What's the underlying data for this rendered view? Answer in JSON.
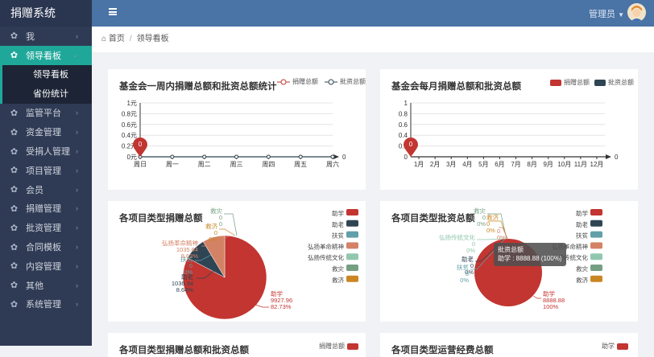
{
  "app": {
    "title": "捐赠系统",
    "user": "管理员"
  },
  "menu": [
    {
      "label": "我",
      "icon": "gear-icon"
    },
    {
      "label": "领导看板",
      "icon": "gear-icon",
      "active": true
    },
    {
      "label": "监管平台",
      "icon": "gear-icon"
    },
    {
      "label": "资金管理",
      "icon": "gear-icon"
    },
    {
      "label": "受捐人管理",
      "icon": "gear-icon"
    },
    {
      "label": "项目管理",
      "icon": "gear-icon"
    },
    {
      "label": "会员",
      "icon": "gear-icon"
    },
    {
      "label": "捐赠管理",
      "icon": "gear-icon"
    },
    {
      "label": "批资管理",
      "icon": "gear-icon"
    },
    {
      "label": "合同模板",
      "icon": "gear-icon"
    },
    {
      "label": "内容管理",
      "icon": "gear-icon"
    },
    {
      "label": "其他",
      "icon": "gear-icon"
    },
    {
      "label": "系统管理",
      "icon": "gear-icon"
    }
  ],
  "submenu": [
    {
      "label": "领导看板"
    },
    {
      "label": "省份统计"
    }
  ],
  "breadcrumb": {
    "home": "首页",
    "current": "领导看板"
  },
  "colors": {
    "donation": "#c23531",
    "approval": "#2f4554",
    "topbar": "#4a73a6",
    "sidebar": "#2f3b55",
    "accent": "#1fa89a"
  },
  "chart_data": [
    {
      "type": "line",
      "title": "基金会一周内捐赠总额和批资总额统计",
      "categories": [
        "周日",
        "周一",
        "周二",
        "周三",
        "周四",
        "周五",
        "周六"
      ],
      "series": [
        {
          "name": "捐赠总额",
          "values": [
            0,
            0,
            0,
            0,
            0,
            0,
            0
          ]
        },
        {
          "name": "批资总额",
          "values": [
            0,
            0,
            0,
            0,
            0,
            0,
            0
          ]
        }
      ],
      "yticks": [
        "0元",
        "0.2元",
        "0.4元",
        "0.6元",
        "0.8元",
        "1元"
      ],
      "ylim": [
        0,
        1
      ],
      "end_label": "0",
      "marker_label": "0"
    },
    {
      "type": "bar",
      "title": "基金会每月捐赠总额和批资总额",
      "categories": [
        "1月",
        "2月",
        "3月",
        "4月",
        "5月",
        "6月",
        "7月",
        "8月",
        "9月",
        "10月",
        "11月",
        "12月"
      ],
      "series": [
        {
          "name": "捐赠总额",
          "values": [
            0,
            0,
            0,
            0,
            0,
            0,
            0,
            0,
            0,
            0,
            0,
            0
          ]
        },
        {
          "name": "批资总额",
          "values": [
            0,
            0,
            0,
            0,
            0,
            0,
            0,
            0,
            0,
            0,
            0,
            0
          ]
        }
      ],
      "yticks": [
        "0",
        "0.2",
        "0.4",
        "0.6",
        "0.8",
        "1"
      ],
      "ylim": [
        0,
        1
      ],
      "end_label": "0",
      "marker_label": "0"
    },
    {
      "type": "pie",
      "title": "各项目类型捐赠总额",
      "legend": [
        {
          "name": "助学",
          "color": "#c23531"
        },
        {
          "name": "助老",
          "color": "#2f4554"
        },
        {
          "name": "扶贫",
          "color": "#61a0a8"
        },
        {
          "name": "弘扬革命精神",
          "color": "#d48265"
        },
        {
          "name": "弘扬传统文化",
          "color": "#91c7ae"
        },
        {
          "name": "救灾",
          "color": "#749f83"
        },
        {
          "name": "救济",
          "color": "#ca8622"
        }
      ],
      "slices": [
        {
          "name": "助学",
          "value": 9927.96,
          "value_text": "9927.96",
          "percent": "82.73%",
          "color": "#c23531"
        },
        {
          "name": "助老",
          "value": 1036.34,
          "value_text": "1036.34",
          "percent": "8.64%",
          "color": "#2f4554"
        },
        {
          "name": "扶贫",
          "value": 0,
          "value_text": "0",
          "percent": "0%",
          "color": "#61a0a8"
        },
        {
          "name": "弘扬革命精神",
          "value": 1035.64,
          "value_text": "1035.64",
          "percent": "8.63%",
          "color": "#d48265"
        },
        {
          "name": "救济",
          "value": 0,
          "value_text": "0",
          "percent": "0%",
          "color": "#ca8622"
        },
        {
          "name": "救灾",
          "value": 0,
          "value_text": "0",
          "percent": "0",
          "color": "#749f83"
        }
      ]
    },
    {
      "type": "pie",
      "title": "各项目类型批资总额",
      "legend": [
        {
          "name": "助学",
          "color": "#c23531"
        },
        {
          "name": "助老",
          "color": "#2f4554"
        },
        {
          "name": "扶贫",
          "color": "#61a0a8"
        },
        {
          "name": "弘扬革命精神",
          "color": "#d48265"
        },
        {
          "name": "弘扬传统文化",
          "color": "#91c7ae"
        },
        {
          "name": "救灾",
          "color": "#749f83"
        },
        {
          "name": "救济",
          "color": "#ca8622"
        }
      ],
      "slices": [
        {
          "name": "助学",
          "value": 8888.88,
          "value_text": "8888.88",
          "percent": "100%",
          "color": "#c23531"
        },
        {
          "name": "助老",
          "value": 0,
          "value_text": "0",
          "percent": "0%",
          "color": "#2f4554"
        },
        {
          "name": "扶贫",
          "value": 0,
          "value_text": "0",
          "percent": "0%",
          "color": "#61a0a8"
        },
        {
          "name": "弘扬革命精神",
          "value": 0,
          "value_text": "0",
          "percent": "0%",
          "color": "#d48265"
        },
        {
          "name": "弘扬传统文化",
          "value": 0,
          "value_text": "0",
          "percent": "0%",
          "color": "#91c7ae"
        },
        {
          "name": "救灾",
          "value": 0,
          "value_text": "0",
          "percent": "0%",
          "color": "#749f83"
        },
        {
          "name": "救济",
          "value": 0,
          "value_text": "0",
          "percent": "0%",
          "color": "#ca8622"
        }
      ],
      "tooltip": {
        "title": "批资总额",
        "text": "助学 : 8888.88 (100%)"
      }
    },
    {
      "type": "bar",
      "title": "各项目类型捐赠总额和批资总额",
      "legend": [
        {
          "name": "捐赠总额",
          "color": "#c23531"
        }
      ]
    },
    {
      "type": "bar",
      "title": "各项目类型运营经费总额",
      "legend": [
        {
          "name": "助学",
          "color": "#c23531"
        }
      ]
    }
  ]
}
